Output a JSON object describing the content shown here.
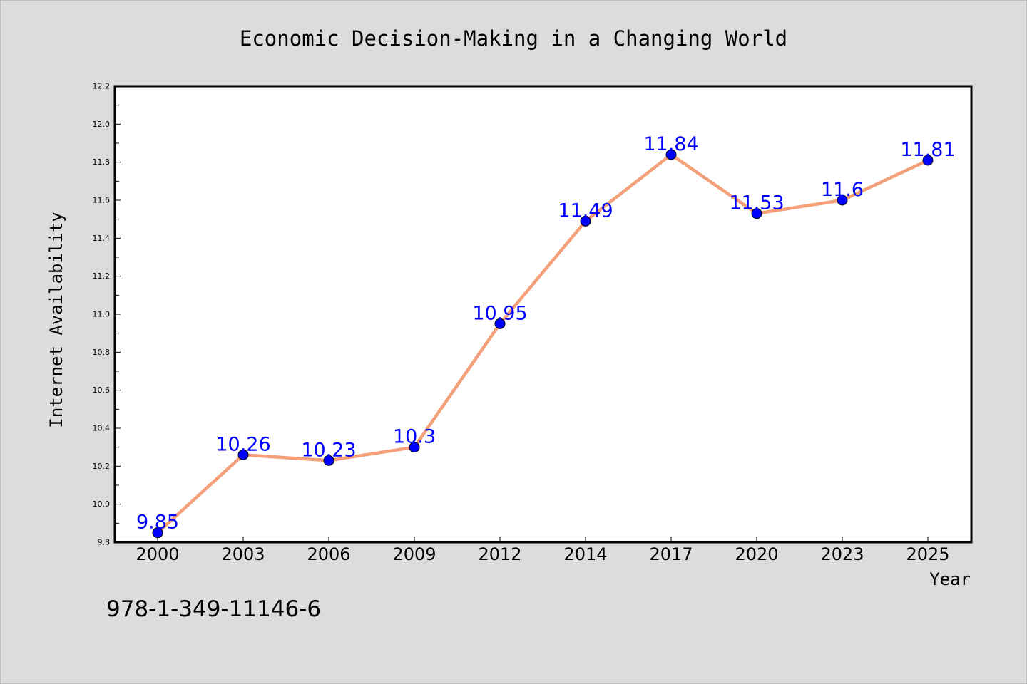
{
  "chart_data": {
    "type": "line",
    "title": "Economic Decision-Making in a Changing World",
    "xlabel": "Year",
    "ylabel": "Internet Availability",
    "categories": [
      "2000",
      "2003",
      "2006",
      "2009",
      "2012",
      "2014",
      "2017",
      "2020",
      "2023",
      "2025"
    ],
    "series": [
      {
        "values": [
          9.85,
          10.26,
          10.23,
          10.3,
          10.95,
          11.49,
          11.84,
          11.53,
          11.6,
          11.81
        ],
        "labels": [
          "9.85",
          "10.26",
          "10.23",
          "10.3",
          "10.95",
          "11.49",
          "11.84",
          "11.53",
          "11.6",
          "11.81"
        ],
        "line_color": "#f4a07a",
        "marker_color": "#0000ff",
        "label_color": "#0000ff"
      }
    ],
    "ylim": [
      9.8,
      12.2
    ],
    "yticks": [
      "9.8",
      "10.0",
      "10.2",
      "10.4",
      "10.6",
      "10.8",
      "11.0",
      "11.2",
      "11.4",
      "11.6",
      "11.8",
      "12.0",
      "12.2"
    ],
    "grid": false,
    "legend": false
  },
  "footer": {
    "isbn": "978-1-349-11146-6"
  },
  "colors": {
    "background": "#dcdcdc",
    "plot_background": "#ffffff",
    "axis": "#000000"
  }
}
